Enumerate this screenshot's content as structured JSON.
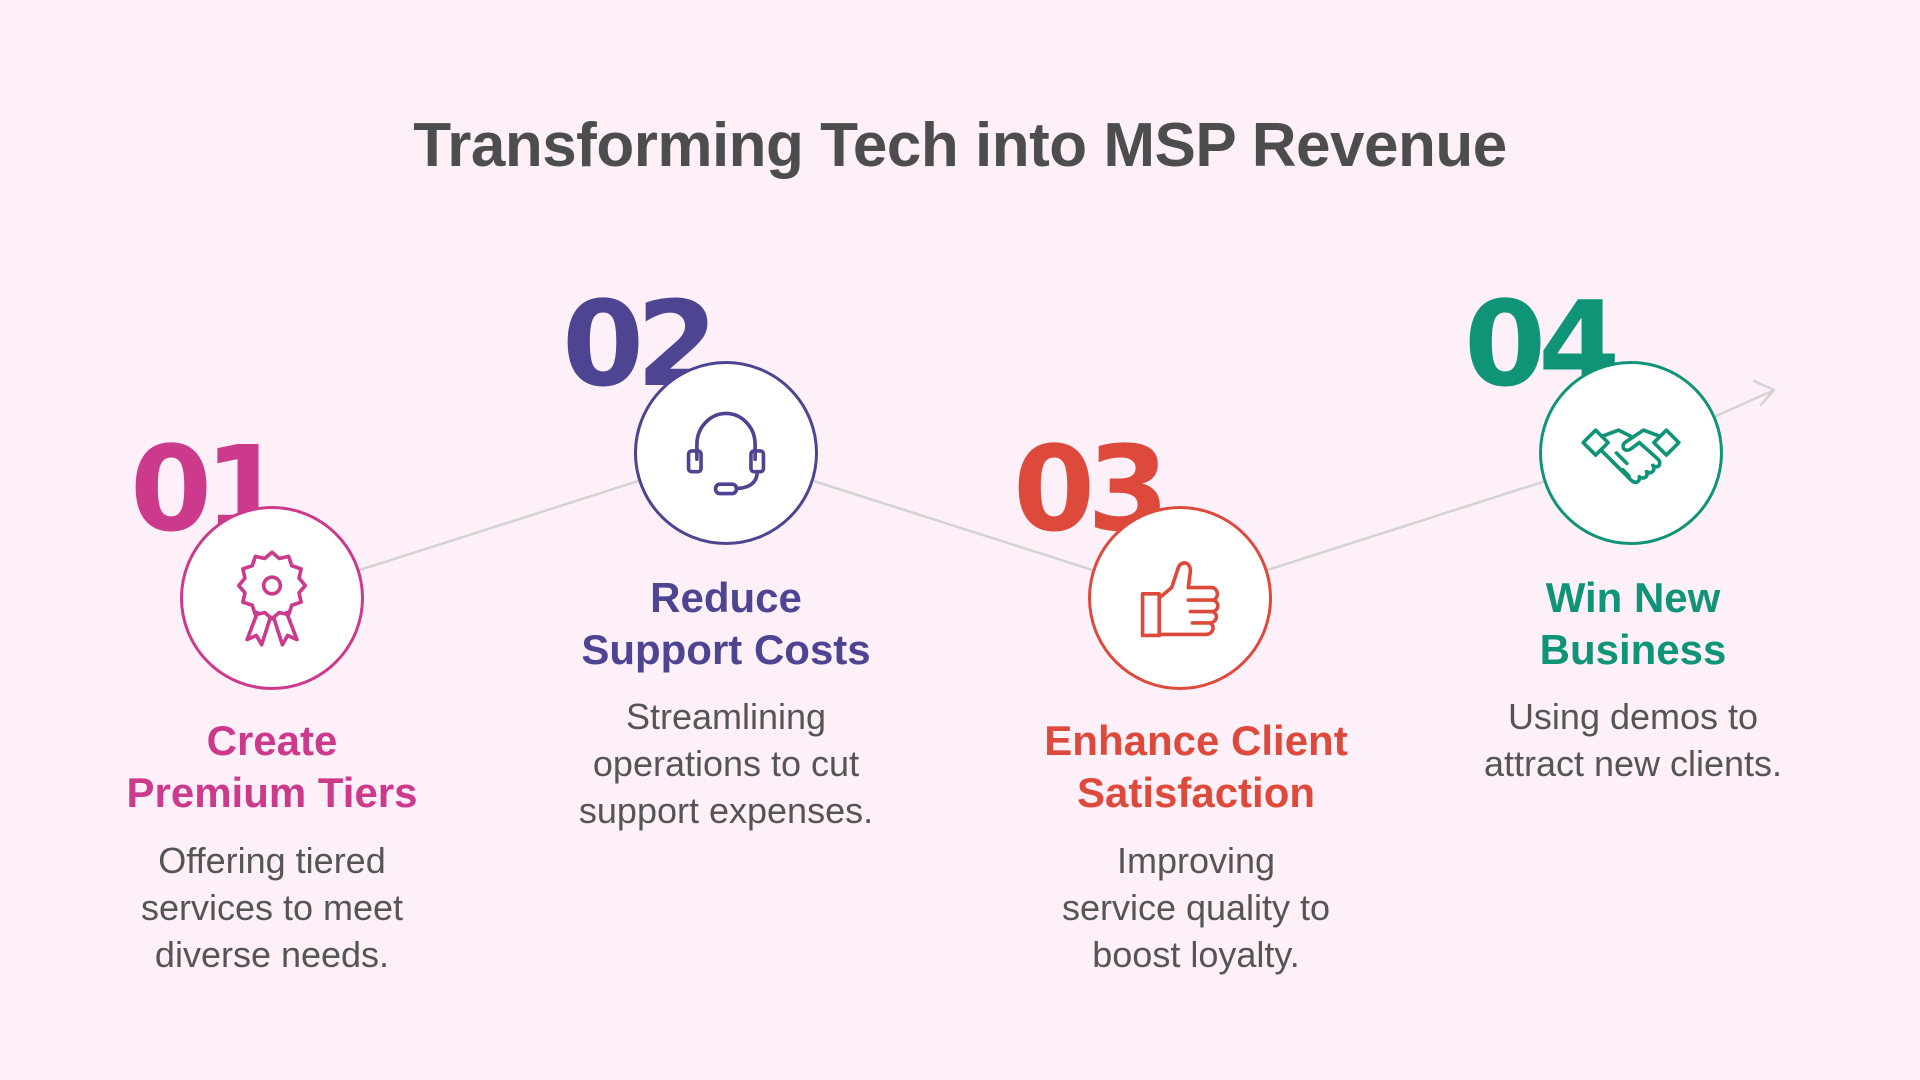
{
  "title": "Transforming Tech into MSP Revenue",
  "steps": [
    {
      "number": "01",
      "title_line1": "Create",
      "title_line2": "Premium Tiers",
      "desc_line1": "Offering tiered",
      "desc_line2": "services to meet",
      "desc_line3": "diverse needs.",
      "color": "#cc3a8c",
      "icon": "award-ribbon-icon"
    },
    {
      "number": "02",
      "title_line1": "Reduce",
      "title_line2": "Support Costs",
      "desc_line1": "Streamlining",
      "desc_line2": "operations to cut",
      "desc_line3": "support expenses.",
      "color": "#4e4592",
      "icon": "headset-icon"
    },
    {
      "number": "03",
      "title_line1": "Enhance Client",
      "title_line2": "Satisfaction",
      "desc_line1": "Improving",
      "desc_line2": "service quality to",
      "desc_line3": "boost loyalty.",
      "color": "#dd4a3c",
      "icon": "thumbs-up-icon"
    },
    {
      "number": "04",
      "title_line1": "Win New",
      "title_line2": "Business",
      "desc_line1": "Using demos to",
      "desc_line2": "attract new clients.",
      "color": "#0f9478",
      "icon": "handshake-icon"
    }
  ]
}
